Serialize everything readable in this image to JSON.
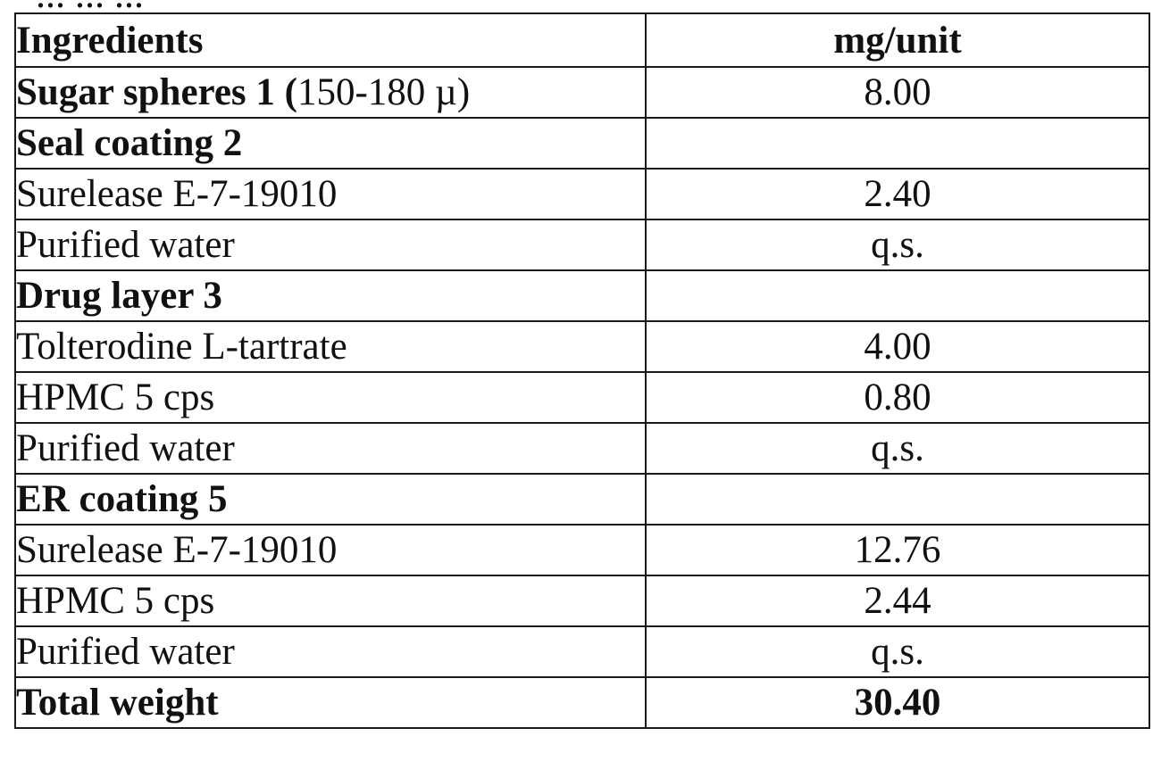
{
  "header_fragment": "... ... ...",
  "table": {
    "headers": {
      "ingredients": "Ingredients",
      "mg_unit": "mg/unit"
    },
    "rows": [
      {
        "name_bold": "Sugar spheres 1 (",
        "name_normal": "150-180 µ)",
        "value": "8.00"
      },
      {
        "name_bold": "Seal coating 2",
        "value": ""
      },
      {
        "name": "Surelease E-7-19010",
        "value": "2.40"
      },
      {
        "name": "Purified water",
        "value": "q.s."
      },
      {
        "name_bold": "Drug layer 3",
        "value": ""
      },
      {
        "name": "Tolterodine L-tartrate",
        "value": "4.00"
      },
      {
        "name": "HPMC 5 cps",
        "value": "0.80"
      },
      {
        "name": "Purified water",
        "value": "q.s."
      },
      {
        "name_bold": "ER coating 5",
        "value": ""
      },
      {
        "name": "Surelease E-7-19010",
        "value": "12.76"
      },
      {
        "name": "HPMC 5 cps",
        "value": "2.44"
      },
      {
        "name": "Purified water",
        "value": "q.s."
      },
      {
        "name_bold": "Total weight",
        "value_bold": "30.40"
      }
    ]
  }
}
